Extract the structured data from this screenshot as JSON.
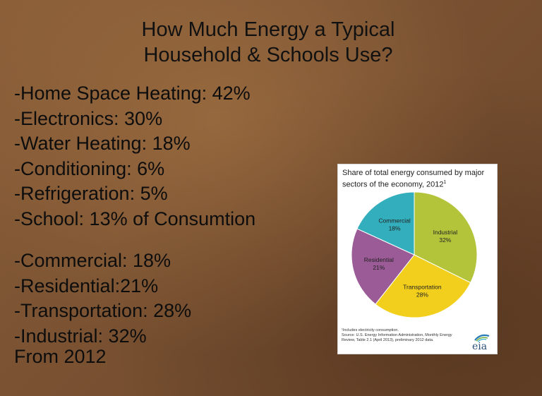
{
  "slide": {
    "title_line1": "How Much Energy a Typical",
    "title_line2": "Household & Schools Use?",
    "list1": [
      "-Home Space Heating: 42%",
      "-Electronics: 30%",
      "-Water Heating: 18%",
      "-Conditioning: 6%",
      "-Refrigeration: 5%",
      "-School: 13% of Consumtion"
    ],
    "list2": [
      "-Commercial: 18%",
      "-Residential:21%",
      "-Transportation: 28%",
      "-Industrial: 32%"
    ],
    "source_line": "From 2012"
  },
  "chart_data": {
    "type": "pie",
    "title": "Share of total energy consumed by major sectors of the economy, 2012",
    "title_footnote_mark": "1",
    "slices": [
      {
        "label": "Industrial",
        "value": 32,
        "value_label": "32%",
        "color": "#b3c43a"
      },
      {
        "label": "Transportation",
        "value": 28,
        "value_label": "28%",
        "color": "#f2cf1d"
      },
      {
        "label": "Residential",
        "value": 21,
        "value_label": "21%",
        "color": "#9b5b97"
      },
      {
        "label": "Commercial",
        "value": 18,
        "value_label": "18%",
        "color": "#33aebc"
      }
    ],
    "footnote": "¹Includes electricity consumption.",
    "source_line1": "Source: U.S. Energy Information Administration, Monthly Energy",
    "source_line2": "Review, Table 2.1 (April 2013), preliminary 2012 data.",
    "logo_text": "eia",
    "logo_colors": [
      "#2a7ab8",
      "#7cb342",
      "#29a9c9"
    ]
  }
}
